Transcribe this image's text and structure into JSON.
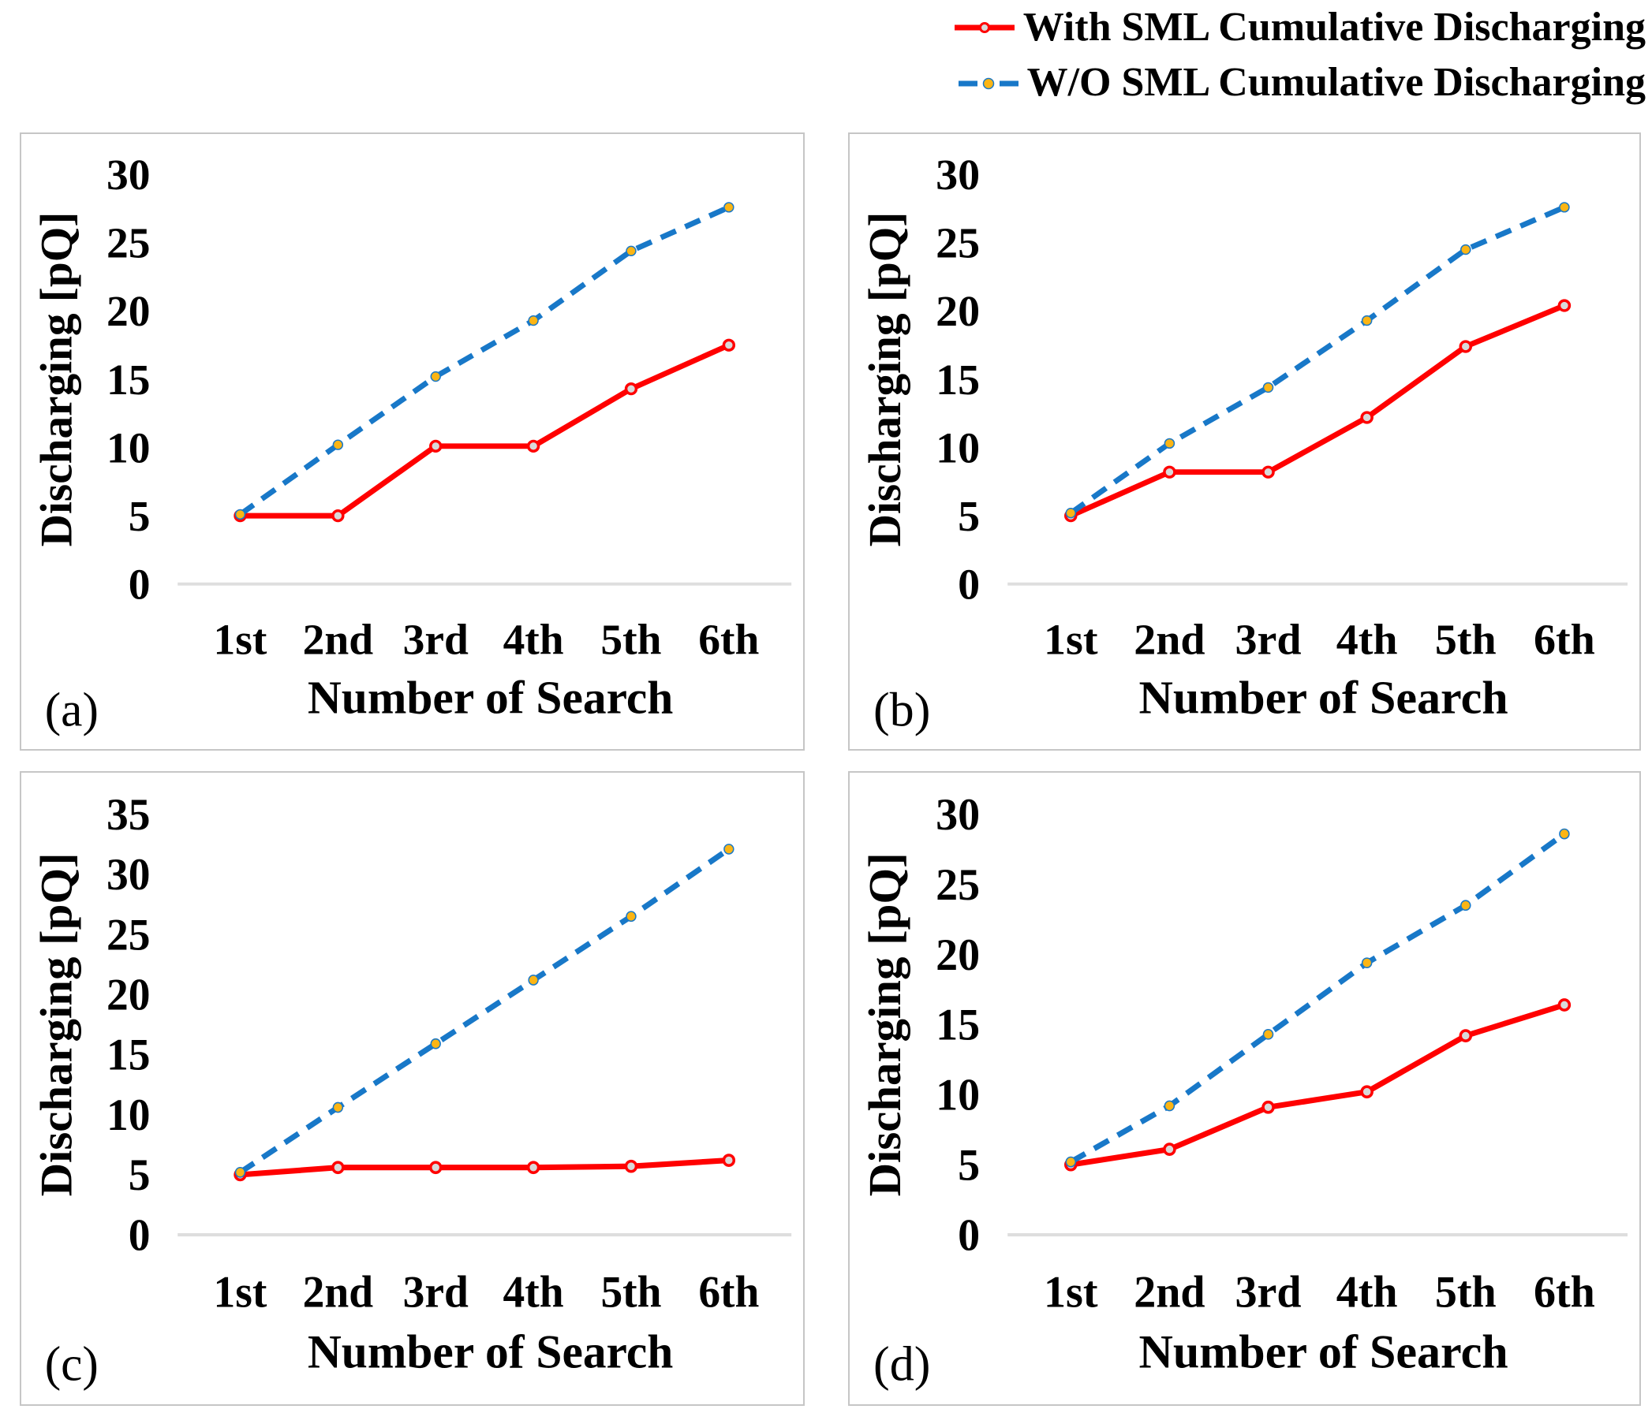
{
  "legend": {
    "items": [
      {
        "label": "With SML Cumulative Discharging",
        "series_key": "with_sml",
        "style": "solid red line, open red circle marker"
      },
      {
        "label": "W/O SML Cumulative Discharging",
        "series_key": "wo_sml",
        "style": "dashed blue line, gold circle marker"
      }
    ]
  },
  "colors": {
    "with_sml_line": "#FF0000",
    "with_sml_marker_fill": "#D9D9D9",
    "wo_sml_line": "#1878C8",
    "wo_sml_marker": "#FCB514",
    "axis_line": "#DEDEDE",
    "panel_border": "#C6C6C6",
    "text": "#000000"
  },
  "chart_data": [
    {
      "type": "line",
      "panel_label": "(a)",
      "xlabel": "Number of Search",
      "ylabel": "Discharging [pQ]",
      "categories": [
        "1st",
        "2nd",
        "3rd",
        "4th",
        "5th",
        "6th"
      ],
      "ylim": [
        0,
        30
      ],
      "ytick_step": 5,
      "grid": "x-axis baseline only",
      "legend_position": "shared top-right",
      "series": [
        {
          "name": "With SML Cumulative Discharging",
          "values": [
            5.0,
            5.0,
            10.1,
            10.1,
            14.3,
            17.5
          ]
        },
        {
          "name": "W/O SML Cumulative Discharging",
          "values": [
            5.1,
            10.2,
            15.2,
            19.3,
            24.4,
            27.6
          ]
        }
      ]
    },
    {
      "type": "line",
      "panel_label": "(b)",
      "xlabel": "Number of Search",
      "ylabel": "Discharging [pQ]",
      "categories": [
        "1st",
        "2nd",
        "3rd",
        "4th",
        "5th",
        "6th"
      ],
      "ylim": [
        0,
        30
      ],
      "ytick_step": 5,
      "grid": "x-axis baseline only",
      "legend_position": "shared top-right",
      "series": [
        {
          "name": "With SML Cumulative Discharging",
          "values": [
            5.0,
            8.2,
            8.2,
            12.2,
            17.4,
            20.4
          ]
        },
        {
          "name": "W/O SML Cumulative Discharging",
          "values": [
            5.2,
            10.3,
            14.4,
            19.3,
            24.5,
            27.6
          ]
        }
      ]
    },
    {
      "type": "line",
      "panel_label": "(c)",
      "xlabel": "Number of Search",
      "ylabel": "Discharging [pQ]",
      "categories": [
        "1st",
        "2nd",
        "3rd",
        "4th",
        "5th",
        "6th"
      ],
      "ylim": [
        0,
        35
      ],
      "ytick_step": 5,
      "grid": "x-axis baseline only",
      "legend_position": "shared top-right",
      "series": [
        {
          "name": "With SML Cumulative Discharging",
          "values": [
            5.0,
            5.6,
            5.6,
            5.6,
            5.7,
            6.2
          ]
        },
        {
          "name": "W/O SML Cumulative Discharging",
          "values": [
            5.2,
            10.6,
            15.9,
            21.2,
            26.5,
            32.1
          ]
        }
      ]
    },
    {
      "type": "line",
      "panel_label": "(d)",
      "xlabel": "Number of Search",
      "ylabel": "Discharging [pQ]",
      "categories": [
        "1st",
        "2nd",
        "3rd",
        "4th",
        "5th",
        "6th"
      ],
      "ylim": [
        0,
        30
      ],
      "ytick_step": 5,
      "grid": "x-axis baseline only",
      "legend_position": "shared top-right",
      "series": [
        {
          "name": "With SML Cumulative Discharging",
          "values": [
            5.0,
            6.1,
            9.1,
            10.2,
            14.2,
            16.4
          ]
        },
        {
          "name": "W/O SML Cumulative Discharging",
          "values": [
            5.2,
            9.2,
            14.3,
            19.4,
            23.5,
            28.6
          ]
        }
      ]
    }
  ]
}
